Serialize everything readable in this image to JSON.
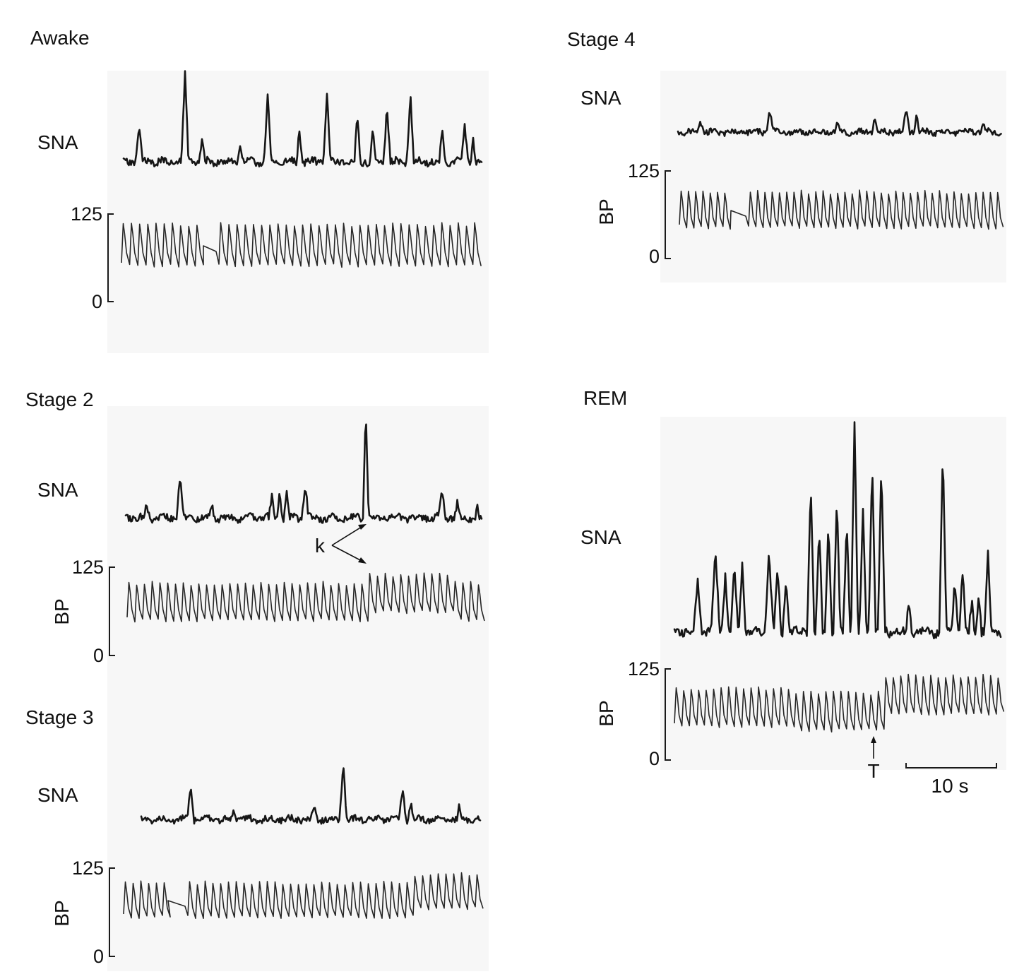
{
  "panels": [
    {
      "id": "awake",
      "title": "Awake",
      "sna_label": "SNA",
      "bp_label": "",
      "bp_max": "125",
      "bp_min": "0"
    },
    {
      "id": "stage2",
      "title": "Stage 2",
      "sna_label": "SNA",
      "bp_label": "BP",
      "bp_max": "125",
      "bp_min": "0"
    },
    {
      "id": "stage3",
      "title": "Stage 3",
      "sna_label": "SNA",
      "bp_label": "BP",
      "bp_max": "125",
      "bp_min": "0"
    },
    {
      "id": "stage4",
      "title": "Stage 4",
      "sna_label": "SNA",
      "bp_label": "BP",
      "bp_max": "125",
      "bp_min": "0"
    },
    {
      "id": "rem",
      "title": "REM",
      "sna_label": "SNA",
      "bp_label": "BP",
      "bp_max": "125",
      "bp_min": "0"
    }
  ],
  "annotations": {
    "k_label": "k",
    "t_label": "T",
    "scale_bar_label": "10 s"
  },
  "colors": {
    "trace": "#161616",
    "background": "#ffffff",
    "panel_shade": "#f7f7f7"
  }
}
